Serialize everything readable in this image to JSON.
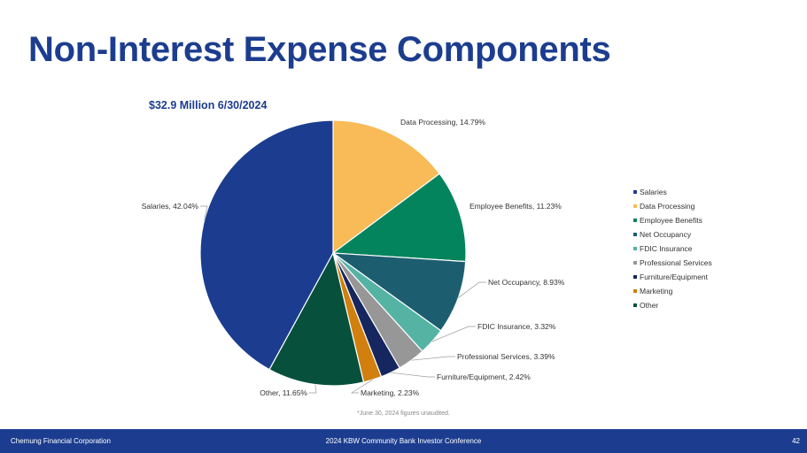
{
  "page": {
    "title": "Non-Interest Expense Components",
    "footnote": "*June 30, 2024 figures unaudited."
  },
  "footer": {
    "company": "Chemung Financial Corporation",
    "event": "2024 KBW Community Bank Investor Conference",
    "page_number": "42"
  },
  "chart_data": {
    "type": "pie",
    "title": "$32.9 Million 6/30/2024",
    "slices": [
      {
        "name": "Data Processing",
        "value": 14.79,
        "label": "Data Processing, 14.79%",
        "color": "#f9bb57"
      },
      {
        "name": "Employee Benefits",
        "value": 11.23,
        "label": "Employee Benefits, 11.23%",
        "color": "#04845c"
      },
      {
        "name": "Net Occupancy",
        "value": 8.93,
        "label": "Net Occupancy, 8.93%",
        "color": "#1d5d70"
      },
      {
        "name": "FDIC Insurance",
        "value": 3.32,
        "label": "FDIC Insurance, 3.32%",
        "color": "#55b3a4"
      },
      {
        "name": "Professional Services",
        "value": 3.39,
        "label": "Professional Services, 3.39%",
        "color": "#979797"
      },
      {
        "name": "Furniture/Equipment",
        "value": 2.42,
        "label": "Furniture/Equipment, 2.42%",
        "color": "#16265e"
      },
      {
        "name": "Marketing",
        "value": 2.23,
        "label": "Marketing, 2.23%",
        "color": "#d17f0e"
      },
      {
        "name": "Other",
        "value": 11.65,
        "label": "Other, 11.65%",
        "color": "#06503c"
      },
      {
        "name": "Salaries",
        "value": 42.04,
        "label": "Salaries, 42.04%",
        "color": "#1c3d8f"
      }
    ],
    "legend": {
      "position": "right",
      "items": [
        {
          "name": "Salaries",
          "color": "#1c3d8f"
        },
        {
          "name": "Data Processing",
          "color": "#f9bb57"
        },
        {
          "name": "Employee Benefits",
          "color": "#04845c"
        },
        {
          "name": "Net Occupancy",
          "color": "#1d5d70"
        },
        {
          "name": "FDIC Insurance",
          "color": "#55b3a4"
        },
        {
          "name": "Professional Services",
          "color": "#979797"
        },
        {
          "name": "Furniture/Equipment",
          "color": "#16265e"
        },
        {
          "name": "Marketing",
          "color": "#d17f0e"
        },
        {
          "name": "Other",
          "color": "#06503c"
        }
      ]
    }
  }
}
